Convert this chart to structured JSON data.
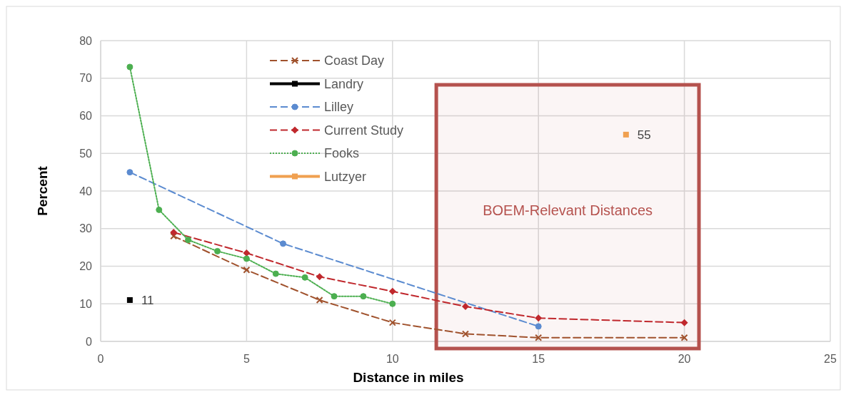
{
  "chart_data": {
    "type": "line",
    "xlabel": "Distance in miles",
    "ylabel": "Percent",
    "xlim": [
      0,
      25
    ],
    "xticks": [
      0,
      5,
      10,
      15,
      20,
      25
    ],
    "ylim": [
      0,
      80
    ],
    "yticks": [
      0,
      10,
      20,
      30,
      40,
      50,
      60,
      70,
      80
    ],
    "grid": true,
    "legend": "top",
    "series": [
      {
        "name": "Coast Day",
        "color": "#a0522d",
        "marker": "cross",
        "line_style": "dashed",
        "x": [
          2.5,
          5,
          7.5,
          10,
          12.5,
          15,
          20
        ],
        "values": [
          28,
          19,
          11,
          5,
          2,
          1,
          1
        ]
      },
      {
        "name": "Landry",
        "color": "#000000",
        "marker": "square",
        "line_style": "solid",
        "x": [
          1
        ],
        "values": [
          11
        ],
        "value_labels": [
          "11"
        ]
      },
      {
        "name": "Lilley",
        "color": "#5b8bd0",
        "marker": "circle",
        "line_style": "dashed",
        "x": [
          1,
          6.25,
          15
        ],
        "values": [
          45,
          26,
          4
        ]
      },
      {
        "name": "Current Study",
        "color": "#c0282d",
        "marker": "diamond",
        "line_style": "dashed",
        "x": [
          2.5,
          5,
          7.5,
          10,
          12.5,
          15,
          20
        ],
        "values": [
          29,
          23.5,
          17.2,
          13.3,
          9.3,
          6.2,
          5
        ]
      },
      {
        "name": "Fooks",
        "color": "#4caf50",
        "marker": "circle",
        "line_style": "dotted",
        "x": [
          1,
          2,
          3,
          4,
          5,
          6,
          7,
          8,
          9,
          10
        ],
        "values": [
          73,
          35,
          27,
          24,
          22,
          18,
          17,
          12,
          12,
          10
        ]
      },
      {
        "name": "Lutzyer",
        "color": "#f0a050",
        "marker": "square",
        "line_style": "solid",
        "x": [
          18
        ],
        "values": [
          55
        ],
        "value_labels": [
          "55"
        ]
      }
    ],
    "bands": [
      {
        "axis": "x",
        "from": 11.5,
        "to": 20.5,
        "label": "BOEM-Relevant Distances",
        "color": "#b5524e"
      }
    ]
  }
}
